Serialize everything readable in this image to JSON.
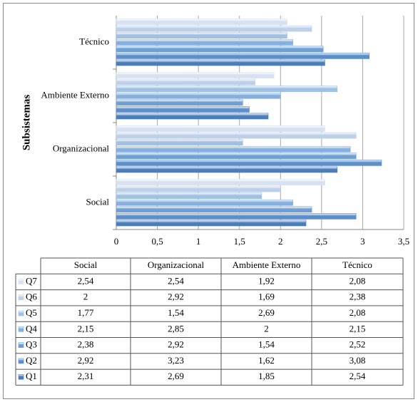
{
  "chart_data": {
    "type": "bar",
    "orientation": "horizontal",
    "y_label": "Subsistemas",
    "categories": [
      "Social",
      "Organizacional",
      "Ambiente Externo",
      "Técnico"
    ],
    "series": [
      {
        "name": "Q1",
        "color": "#4a7ebb",
        "values": [
          2.31,
          2.69,
          1.85,
          2.54
        ],
        "value_labels": [
          "2,31",
          "2,69",
          "1,85",
          "2,54"
        ]
      },
      {
        "name": "Q2",
        "color": "#5b8ecb",
        "values": [
          2.92,
          3.23,
          1.62,
          3.08
        ],
        "value_labels": [
          "2,92",
          "3,23",
          "1,62",
          "3,08"
        ]
      },
      {
        "name": "Q3",
        "color": "#6f9fd6",
        "values": [
          2.38,
          2.92,
          1.54,
          2.52
        ],
        "value_labels": [
          "2,38",
          "2,92",
          "1,54",
          "2,52"
        ]
      },
      {
        "name": "Q4",
        "color": "#85afde",
        "values": [
          2.15,
          2.85,
          2,
          2.15
        ],
        "value_labels": [
          "2,15",
          "2,85",
          "2",
          "2,15"
        ]
      },
      {
        "name": "Q5",
        "color": "#a0c0e4",
        "values": [
          1.77,
          1.54,
          2.69,
          2.08
        ],
        "value_labels": [
          "1,77",
          "1,54",
          "2,69",
          "2,08"
        ]
      },
      {
        "name": "Q6",
        "color": "#bcd0ea",
        "values": [
          2,
          2.92,
          1.69,
          2.38
        ],
        "value_labels": [
          "2",
          "2,92",
          "1,69",
          "2,38"
        ]
      },
      {
        "name": "Q7",
        "color": "#d6e1f1",
        "values": [
          2.54,
          2.54,
          1.92,
          2.08
        ],
        "value_labels": [
          "2,54",
          "2,54",
          "1,92",
          "2,08"
        ]
      }
    ],
    "xlim": [
      0,
      3.5
    ],
    "xticks": [
      0,
      {
        "value": 0.5,
        "label": "0,5"
      },
      1,
      {
        "value": 1.5,
        "label": "1,5"
      },
      2,
      {
        "value": 2.5,
        "label": "2,5"
      },
      3,
      {
        "value": 3.5,
        "label": "3,5"
      }
    ],
    "grid": true
  }
}
